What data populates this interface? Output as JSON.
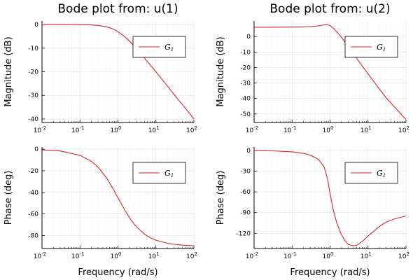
{
  "chart_data": [
    {
      "type": "line",
      "title": "Bode plot from: u(1)",
      "ylabel": "Magnitude (dB)",
      "xlabel": "",
      "xscale": "log",
      "xlim": [
        0.01,
        100
      ],
      "ylim": [
        -41.5,
        1.5
      ],
      "yticks": [
        0,
        -10,
        -20,
        -30,
        -40
      ],
      "xticks": [
        {
          "base": "10",
          "exp": "-2"
        },
        {
          "base": "10",
          "exp": "-1"
        },
        {
          "base": "10",
          "exp": "0"
        },
        {
          "base": "10",
          "exp": "1"
        },
        {
          "base": "10",
          "exp": "2"
        }
      ],
      "legend": {
        "position": "top-right",
        "entries": [
          {
            "name": "G",
            "subscript": "1",
            "color": "#d62728"
          }
        ]
      },
      "series": [
        {
          "name": "G1",
          "color": "#d62728",
          "x": [
            0.01,
            0.03,
            0.1,
            0.2,
            0.3,
            0.5,
            0.7,
            1,
            1.5,
            2,
            3,
            5,
            7,
            10,
            20,
            30,
            50,
            100
          ],
          "y": [
            0,
            0,
            -0.04,
            -0.17,
            -0.37,
            -0.97,
            -1.7,
            -3.01,
            -5.12,
            -6.99,
            -10.0,
            -14.15,
            -17.0,
            -20.04,
            -26.03,
            -29.55,
            -34.0,
            -40.0
          ]
        }
      ]
    },
    {
      "type": "line",
      "title": "Bode plot from: u(2)",
      "ylabel": "Magnitude (dB)",
      "xlabel": "",
      "xscale": "log",
      "xlim": [
        0.01,
        100
      ],
      "ylim": [
        -55.5,
        10
      ],
      "yticks": [
        0,
        -10,
        -20,
        -30,
        -40,
        -50
      ],
      "xticks": [
        {
          "base": "10",
          "exp": "-2"
        },
        {
          "base": "10",
          "exp": "-1"
        },
        {
          "base": "10",
          "exp": "0"
        },
        {
          "base": "10",
          "exp": "1"
        },
        {
          "base": "10",
          "exp": "2"
        }
      ],
      "legend": {
        "position": "top-right",
        "entries": [
          {
            "name": "G",
            "subscript": "1",
            "color": "#d62728"
          }
        ]
      },
      "series": [
        {
          "name": "G1",
          "color": "#d62728",
          "x": [
            0.01,
            0.03,
            0.1,
            0.2,
            0.3,
            0.5,
            0.7,
            0.85,
            1,
            1.2,
            1.5,
            2,
            3,
            5,
            7,
            10,
            20,
            30,
            50,
            100
          ],
          "y": [
            6.0,
            6.0,
            6.1,
            6.2,
            6.4,
            6.9,
            7.5,
            7.6,
            7.0,
            5.5,
            3.0,
            -0.5,
            -6.5,
            -14.0,
            -19.0,
            -24.0,
            -34.0,
            -39.5,
            -45.5,
            -53.5
          ]
        }
      ]
    },
    {
      "type": "line",
      "title": "",
      "ylabel": "Phase (deg)",
      "xlabel": "Frequency (rad/s)",
      "xscale": "log",
      "xlim": [
        0.01,
        100
      ],
      "ylim": [
        -92,
        2
      ],
      "yticks": [
        0,
        -20,
        -40,
        -60,
        -80
      ],
      "xticks": [
        {
          "base": "10",
          "exp": "-2"
        },
        {
          "base": "10",
          "exp": "-1"
        },
        {
          "base": "10",
          "exp": "0"
        },
        {
          "base": "10",
          "exp": "1"
        },
        {
          "base": "10",
          "exp": "2"
        }
      ],
      "legend": {
        "position": "top-right",
        "entries": [
          {
            "name": "G",
            "subscript": "1",
            "color": "#d62728"
          }
        ]
      },
      "series": [
        {
          "name": "G1",
          "color": "#d62728",
          "x": [
            0.01,
            0.03,
            0.1,
            0.2,
            0.3,
            0.5,
            0.7,
            1,
            1.5,
            2,
            3,
            5,
            7,
            10,
            20,
            30,
            50,
            100
          ],
          "y": [
            -0.57,
            -1.72,
            -5.71,
            -11.3,
            -16.7,
            -26.6,
            -35.0,
            -45.0,
            -56.3,
            -63.4,
            -71.6,
            -78.7,
            -81.9,
            -84.3,
            -87.1,
            -88.1,
            -88.9,
            -89.4
          ]
        }
      ]
    },
    {
      "type": "line",
      "title": "",
      "ylabel": "Phase (deg)",
      "xlabel": "Frequency (rad/s)",
      "xscale": "log",
      "xlim": [
        0.01,
        100
      ],
      "ylim": [
        -142,
        5
      ],
      "yticks": [
        0,
        -30,
        -60,
        -90,
        -120
      ],
      "xticks": [
        {
          "base": "10",
          "exp": "-2"
        },
        {
          "base": "10",
          "exp": "-1"
        },
        {
          "base": "10",
          "exp": "0"
        },
        {
          "base": "10",
          "exp": "1"
        },
        {
          "base": "10",
          "exp": "2"
        }
      ],
      "legend": {
        "position": "top-right",
        "entries": [
          {
            "name": "G",
            "subscript": "1",
            "color": "#d62728"
          }
        ]
      },
      "series": [
        {
          "name": "G1",
          "color": "#d62728",
          "x": [
            0.01,
            0.03,
            0.1,
            0.2,
            0.3,
            0.5,
            0.7,
            0.85,
            1,
            1.2,
            1.5,
            2,
            2.5,
            3,
            4,
            5,
            7,
            10,
            20,
            30,
            50,
            100
          ],
          "y": [
            -0.2,
            -0.6,
            -2.0,
            -4.2,
            -6.8,
            -13.0,
            -24.0,
            -40.0,
            -62.0,
            -85.0,
            -105.0,
            -122.0,
            -131.0,
            -136.0,
            -138.0,
            -137.5,
            -132.0,
            -124.0,
            -110.0,
            -104.0,
            -99.0,
            -95.0
          ]
        }
      ]
    }
  ]
}
